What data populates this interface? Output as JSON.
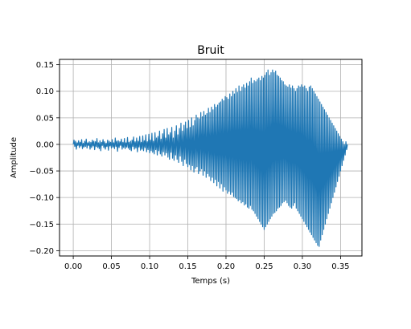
{
  "chart_data": {
    "type": "line",
    "title": "Bruit",
    "xlabel": "Temps (s)",
    "ylabel": "Amplitude",
    "xlim": [
      -0.018,
      0.378
    ],
    "ylim": [
      -0.21,
      0.16
    ],
    "grid": true,
    "xticks": [
      0.0,
      0.05,
      0.1,
      0.15,
      0.2,
      0.25,
      0.3,
      0.35
    ],
    "xtick_labels": [
      "0.00",
      "0.05",
      "0.10",
      "0.15",
      "0.20",
      "0.25",
      "0.30",
      "0.35"
    ],
    "yticks": [
      0.15,
      0.1,
      0.05,
      0.0,
      -0.05,
      -0.1,
      -0.15,
      -0.2
    ],
    "ytick_labels": [
      "0.15",
      "0.10",
      "0.05",
      "0.00",
      "−0.05",
      "−0.10",
      "−0.15",
      "−0.20"
    ],
    "series": [
      {
        "color": "#1f77b4",
        "sample_interval": 0.001,
        "x_start": 0.0,
        "values": [
          0.0,
          0.008,
          -0.004,
          0.006,
          -0.009,
          0.003,
          -0.002,
          0.007,
          -0.006,
          0.004,
          -0.003,
          0.009,
          -0.008,
          0.002,
          -0.005,
          0.006,
          -0.004,
          0.01,
          -0.007,
          0.003,
          -0.002,
          0.005,
          -0.009,
          0.004,
          -0.006,
          0.008,
          -0.003,
          0.006,
          -0.01,
          0.005,
          -0.004,
          0.011,
          -0.006,
          0.003,
          -0.008,
          0.007,
          -0.012,
          0.004,
          -0.002,
          0.009,
          -0.006,
          0.005,
          -0.009,
          0.002,
          -0.004,
          0.008,
          -0.011,
          0.006,
          -0.003,
          0.004,
          -0.007,
          0.009,
          -0.005,
          0.003,
          -0.008,
          0.012,
          -0.004,
          0.006,
          -0.013,
          0.007,
          -0.006,
          0.005,
          -0.002,
          0.01,
          -0.009,
          0.004,
          -0.006,
          0.011,
          -0.008,
          0.003,
          -0.005,
          0.013,
          -0.007,
          0.004,
          -0.01,
          0.006,
          -0.012,
          0.008,
          -0.004,
          0.014,
          -0.009,
          0.005,
          -0.007,
          0.012,
          -0.014,
          0.006,
          -0.005,
          0.015,
          -0.011,
          0.004,
          -0.009,
          0.016,
          -0.012,
          0.007,
          -0.006,
          0.018,
          -0.014,
          0.005,
          -0.01,
          0.019,
          -0.016,
          0.008,
          -0.012,
          0.021,
          -0.015,
          0.006,
          -0.018,
          0.022,
          -0.01,
          0.012,
          -0.02,
          0.015,
          -0.012,
          0.025,
          -0.018,
          0.01,
          -0.022,
          0.02,
          -0.014,
          0.028,
          -0.02,
          0.012,
          -0.016,
          0.03,
          -0.024,
          0.018,
          -0.028,
          0.022,
          -0.015,
          0.032,
          -0.026,
          0.012,
          -0.03,
          0.025,
          -0.02,
          0.035,
          -0.028,
          0.018,
          -0.034,
          0.03,
          -0.022,
          0.04,
          -0.032,
          0.025,
          -0.04,
          0.036,
          -0.028,
          0.042,
          -0.036,
          0.03,
          -0.042,
          0.045,
          -0.038,
          0.032,
          -0.048,
          0.05,
          -0.04,
          0.035,
          -0.052,
          0.045,
          -0.045,
          0.055,
          -0.042,
          0.05,
          -0.055,
          0.048,
          -0.05,
          0.06,
          -0.046,
          0.052,
          -0.058,
          0.062,
          -0.05,
          0.055,
          -0.062,
          0.058,
          -0.055,
          0.068,
          -0.06,
          0.06,
          -0.068,
          0.07,
          -0.062,
          0.065,
          -0.072,
          0.075,
          -0.066,
          0.07,
          -0.078,
          0.074,
          -0.07,
          0.078,
          -0.082,
          0.08,
          -0.074,
          0.085,
          -0.088,
          0.082,
          -0.08,
          0.09,
          -0.086,
          0.088,
          -0.092,
          0.085,
          -0.088,
          0.095,
          -0.094,
          0.09,
          -0.09,
          0.1,
          -0.098,
          0.095,
          -0.1,
          0.105,
          -0.102,
          0.098,
          -0.106,
          0.11,
          -0.104,
          0.1,
          -0.11,
          0.108,
          -0.108,
          0.112,
          -0.114,
          0.106,
          -0.112,
          0.115,
          -0.118,
          0.11,
          -0.12,
          0.118,
          -0.115,
          0.125,
          -0.122,
          0.115,
          -0.125,
          0.12,
          -0.13,
          0.118,
          -0.135,
          0.122,
          -0.14,
          0.125,
          -0.145,
          0.12,
          -0.15,
          0.128,
          -0.155,
          0.125,
          -0.16,
          0.13,
          -0.155,
          0.135,
          -0.15,
          0.14,
          -0.145,
          0.13,
          -0.14,
          0.135,
          -0.135,
          0.14,
          -0.13,
          0.135,
          -0.128,
          0.138,
          -0.125,
          0.13,
          -0.12,
          0.128,
          -0.118,
          0.125,
          -0.115,
          0.12,
          -0.11,
          0.118,
          -0.108,
          0.112,
          -0.105,
          0.11,
          -0.11,
          0.108,
          -0.115,
          0.112,
          -0.118,
          0.106,
          -0.12,
          0.11,
          -0.115,
          0.105,
          -0.11,
          0.1,
          -0.12,
          0.105,
          -0.125,
          0.11,
          -0.13,
          0.108,
          -0.135,
          0.112,
          -0.14,
          0.108,
          -0.145,
          0.11,
          -0.15,
          0.105,
          -0.155,
          0.1,
          -0.16,
          0.108,
          -0.165,
          0.11,
          -0.17,
          0.105,
          -0.175,
          0.1,
          -0.18,
          0.095,
          -0.185,
          0.09,
          -0.19,
          0.085,
          -0.192,
          0.08,
          -0.18,
          0.075,
          -0.17,
          0.07,
          -0.16,
          0.065,
          -0.15,
          0.06,
          -0.14,
          0.055,
          -0.13,
          0.05,
          -0.12,
          0.045,
          -0.11,
          0.04,
          -0.1,
          0.035,
          -0.09,
          0.03,
          -0.08,
          0.025,
          -0.07,
          0.02,
          -0.06,
          0.015,
          -0.05,
          0.01,
          -0.04,
          0.005,
          -0.03,
          0.0,
          -0.02,
          0.005,
          -0.01,
          0.0
        ]
      }
    ]
  }
}
